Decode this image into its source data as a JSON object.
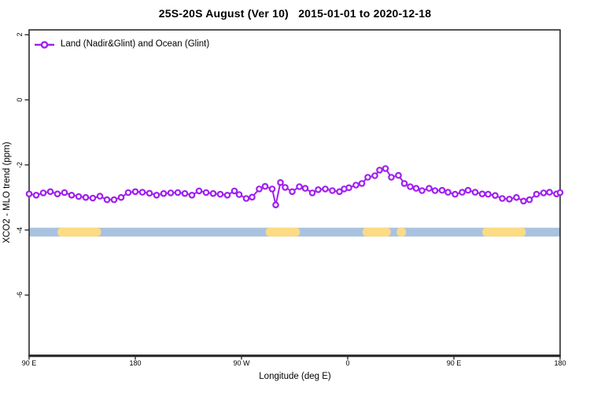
{
  "title": "25S-20S August (Ver 10)   2015-01-01 to 2020-12-18",
  "legend": {
    "label": "Land (Nadir&Glint) and Ocean (Glint)",
    "line_color": "#A020F0",
    "marker": "open-circle"
  },
  "axes": {
    "x_label": "Longitude (deg E)",
    "y_label": "XCO2 - MLO trend (ppm)"
  },
  "colors": {
    "series": "#A020F0",
    "marker_fill": "#ffffff",
    "ocean": "#A9C2DF",
    "land": "#FBDB84",
    "frame": "#2b2b2b",
    "background": "#ffffff"
  },
  "chart_data": {
    "type": "line",
    "title": "25S-20S August (Ver 10)   2015-01-01 to 2020-12-18",
    "xlabel": "Longitude (deg E)",
    "ylabel": "XCO2 - MLO trend (ppm)",
    "xlim": [
      90,
      540
    ],
    "ylim": [
      -7.85,
      2.15
    ],
    "grid": false,
    "legend_position": "top-left",
    "x_ticks": [
      {
        "value": 90,
        "label": "90 E"
      },
      {
        "value": 180,
        "label": "180"
      },
      {
        "value": 270,
        "label": "90 W"
      },
      {
        "value": 360,
        "label": "0"
      },
      {
        "value": 450,
        "label": "90 E"
      },
      {
        "value": 540,
        "label": "180"
      }
    ],
    "y_ticks": [
      {
        "value": 2,
        "label": "2"
      },
      {
        "value": 0,
        "label": "0"
      },
      {
        "value": -2,
        "label": "-2"
      },
      {
        "value": -4,
        "label": "-4"
      },
      {
        "value": -6,
        "label": "-6"
      }
    ],
    "series": [
      {
        "name": "Land (Nadir&Glint) and Ocean (Glint)",
        "color": "#A020F0",
        "marker": "open-circle",
        "x": [
          90,
          96,
          102,
          108,
          114,
          120,
          126,
          132,
          138,
          144,
          150,
          156,
          162,
          168,
          174,
          180,
          186,
          192,
          198,
          204,
          210,
          216,
          222,
          228,
          234,
          240,
          246,
          252,
          258,
          264,
          268,
          274,
          279,
          285,
          290,
          296,
          299,
          303,
          307,
          313,
          319,
          324,
          330,
          335,
          341,
          347,
          353,
          357,
          361,
          367,
          372,
          377,
          383,
          387,
          392,
          397,
          403,
          408,
          413,
          418,
          423,
          429,
          434,
          440,
          445,
          451,
          457,
          462,
          468,
          474,
          479,
          485,
          491,
          497,
          503,
          509,
          514,
          520,
          526,
          531,
          537,
          540
        ],
        "y": [
          -2.89,
          -2.93,
          -2.86,
          -2.82,
          -2.89,
          -2.85,
          -2.93,
          -2.97,
          -3.0,
          -3.02,
          -2.96,
          -3.07,
          -3.07,
          -3.0,
          -2.85,
          -2.82,
          -2.84,
          -2.87,
          -2.93,
          -2.88,
          -2.86,
          -2.85,
          -2.88,
          -2.93,
          -2.8,
          -2.85,
          -2.88,
          -2.9,
          -2.93,
          -2.8,
          -2.91,
          -3.03,
          -2.99,
          -2.74,
          -2.66,
          -2.74,
          -3.23,
          -2.54,
          -2.69,
          -2.82,
          -2.67,
          -2.72,
          -2.86,
          -2.76,
          -2.74,
          -2.79,
          -2.82,
          -2.74,
          -2.7,
          -2.62,
          -2.57,
          -2.38,
          -2.33,
          -2.16,
          -2.11,
          -2.38,
          -2.32,
          -2.57,
          -2.67,
          -2.72,
          -2.79,
          -2.72,
          -2.79,
          -2.78,
          -2.84,
          -2.9,
          -2.84,
          -2.78,
          -2.84,
          -2.89,
          -2.9,
          -2.94,
          -3.03,
          -3.05,
          -3.0,
          -3.11,
          -3.07,
          -2.9,
          -2.86,
          -2.84,
          -2.89,
          -2.85
        ]
      }
    ],
    "map_strip": {
      "description": "land-ocean band of latitude zone 25S-20S drawn across plot",
      "ocean_color": "#A9C2DF",
      "land_color": "#FBDB84",
      "value_range": [
        -3.93,
        -4.2
      ],
      "land_segments_lon": [
        [
          114,
          151
        ],
        [
          290.5,
          319.5
        ],
        [
          372.5,
          396.5
        ],
        [
          401.5,
          409.5
        ],
        [
          474,
          511
        ]
      ]
    }
  }
}
